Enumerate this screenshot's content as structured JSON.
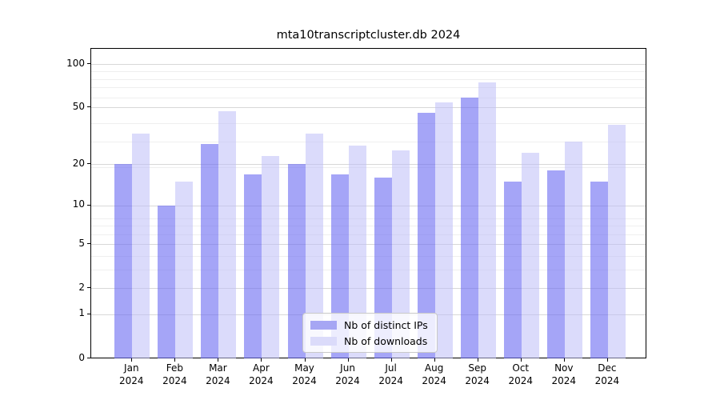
{
  "title": "mta10transcriptcluster.db 2024",
  "chart_data": {
    "type": "bar",
    "title": "mta10transcriptcluster.db 2024",
    "categories": [
      "Jan",
      "Feb",
      "Mar",
      "Apr",
      "May",
      "Jun",
      "Jul",
      "Aug",
      "Sep",
      "Oct",
      "Nov",
      "Dec"
    ],
    "year_label": "2024",
    "series": [
      {
        "name": "Nb of distinct IPs",
        "color": "#a6a6f4",
        "fill": "rgba(110,110,242,0.62)",
        "values": [
          20,
          10,
          28,
          17,
          20,
          17,
          16,
          46,
          59,
          15,
          18,
          15
        ]
      },
      {
        "name": "Nb of downloads",
        "color": "#dbdbfa",
        "fill": "rgba(190,190,248,0.55)",
        "values": [
          33,
          15,
          47,
          23,
          33,
          27,
          25,
          54,
          75,
          24,
          29,
          38
        ]
      }
    ],
    "yticks": [
      0,
      1,
      2,
      5,
      10,
      20,
      50,
      100
    ],
    "minor_gridlines": [
      3,
      4,
      6,
      7,
      8,
      19,
      29,
      39,
      59,
      69,
      79,
      89
    ],
    "scale": "log1p",
    "ylim": [
      0,
      130
    ],
    "grid": true,
    "legend_position": "lower center"
  }
}
